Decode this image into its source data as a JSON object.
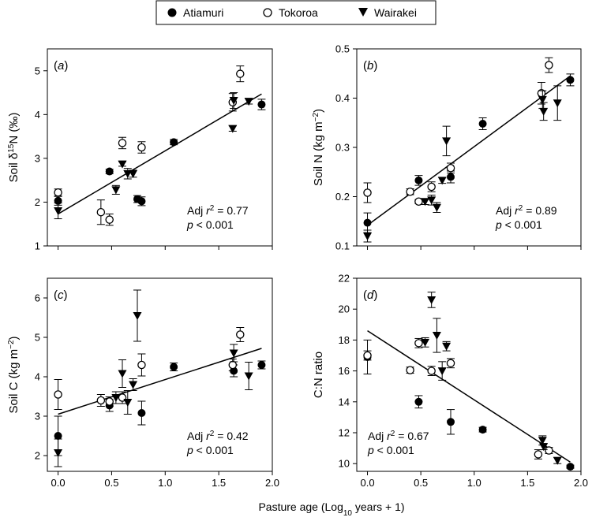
{
  "legend": {
    "entries": [
      {
        "label": "Atiamuri",
        "marker": "filled-circle"
      },
      {
        "label": "Tokoroa",
        "marker": "open-circle"
      },
      {
        "label": "Wairakei",
        "marker": "filled-triangle-down"
      }
    ]
  },
  "shared_xlabel": "Pasture age (Log10 years + 1)",
  "chart_data": [
    {
      "type": "scatter",
      "panel": "(a)",
      "ylabel": "Soil δ15N (‰)",
      "xlim": [
        -0.1,
        2.0
      ],
      "ylim": [
        1,
        5.5
      ],
      "xticks": [
        "0.0",
        "0.5",
        "1.0",
        "1.5",
        "2.0"
      ],
      "xtick_values": [
        0,
        0.5,
        1.0,
        1.5,
        2.0
      ],
      "yticks": [
        "1",
        "2",
        "3",
        "4",
        "5"
      ],
      "ytick_values": [
        1,
        2,
        3,
        4,
        5
      ],
      "show_xtick_labels": false,
      "annotation": {
        "r2_prefix": "Adj ",
        "r2_symbol": "r",
        "r2_power": "2",
        "r2_value": " = 0.77",
        "p_symbol": "p",
        "p_text": " < 0.001"
      },
      "fit": {
        "x": [
          0,
          1.9
        ],
        "y": [
          1.73,
          4.47
        ]
      },
      "series": [
        {
          "name": "Atiamuri",
          "points": [
            {
              "x": 0.0,
              "y": 2.03,
              "err": 0.1
            },
            {
              "x": 0.48,
              "y": 2.7,
              "err": 0.05
            },
            {
              "x": 0.74,
              "y": 2.07,
              "err": 0.08
            },
            {
              "x": 0.78,
              "y": 2.02,
              "err": 0.1
            },
            {
              "x": 1.08,
              "y": 3.37,
              "err": 0.06
            },
            {
              "x": 1.9,
              "y": 4.23,
              "err": 0.12
            }
          ]
        },
        {
          "name": "Tokoroa",
          "points": [
            {
              "x": 0.0,
              "y": 2.22,
              "err": 0.08
            },
            {
              "x": 0.4,
              "y": 1.77,
              "err": 0.28
            },
            {
              "x": 0.48,
              "y": 1.6,
              "err": 0.13
            },
            {
              "x": 0.6,
              "y": 3.35,
              "err": 0.13
            },
            {
              "x": 0.78,
              "y": 3.25,
              "err": 0.13
            },
            {
              "x": 1.63,
              "y": 4.28,
              "err": 0.2
            },
            {
              "x": 1.7,
              "y": 4.93,
              "err": 0.18
            }
          ]
        },
        {
          "name": "Wairakei",
          "points": [
            {
              "x": 0.0,
              "y": 1.8,
              "err": 0.18
            },
            {
              "x": 0.54,
              "y": 2.28,
              "err": 0.1
            },
            {
              "x": 0.6,
              "y": 2.87,
              "err": 0.05
            },
            {
              "x": 0.65,
              "y": 2.65,
              "err": 0.12
            },
            {
              "x": 0.7,
              "y": 2.65,
              "err": 0.08
            },
            {
              "x": 1.63,
              "y": 3.68,
              "err": 0.06
            },
            {
              "x": 1.64,
              "y": 4.32,
              "err": 0.18
            },
            {
              "x": 1.78,
              "y": 4.3,
              "err": 0.06
            }
          ]
        }
      ]
    },
    {
      "type": "scatter",
      "panel": "(b)",
      "ylabel": "Soil N (kg m−2)",
      "xlim": [
        -0.1,
        2.0
      ],
      "ylim": [
        0.1,
        0.5
      ],
      "xticks": [
        "0.0",
        "0.5",
        "1.0",
        "1.5",
        "2.0"
      ],
      "xtick_values": [
        0,
        0.5,
        1.0,
        1.5,
        2.0
      ],
      "yticks": [
        "0.1",
        "0.2",
        "0.3",
        "0.4",
        "0.5"
      ],
      "ytick_values": [
        0.1,
        0.2,
        0.3,
        0.4,
        0.5
      ],
      "show_xtick_labels": false,
      "annotation": {
        "r2_prefix": "Adj ",
        "r2_symbol": "r",
        "r2_power": "2",
        "r2_value": " = 0.89",
        "p_symbol": "p",
        "p_text": " < 0.001"
      },
      "fit": {
        "x": [
          0,
          1.9
        ],
        "y": [
          0.142,
          0.445
        ]
      },
      "series": [
        {
          "name": "Atiamuri",
          "points": [
            {
              "x": 0.0,
              "y": 0.147,
              "err": 0.02
            },
            {
              "x": 0.48,
              "y": 0.233,
              "err": 0.01
            },
            {
              "x": 0.78,
              "y": 0.24,
              "err": 0.012
            },
            {
              "x": 1.08,
              "y": 0.348,
              "err": 0.012
            },
            {
              "x": 1.9,
              "y": 0.437,
              "err": 0.012
            }
          ]
        },
        {
          "name": "Tokoroa",
          "points": [
            {
              "x": 0.0,
              "y": 0.208,
              "err": 0.02
            },
            {
              "x": 0.4,
              "y": 0.21,
              "err": 0.006
            },
            {
              "x": 0.48,
              "y": 0.19,
              "err": 0.004
            },
            {
              "x": 0.6,
              "y": 0.22,
              "err": 0.01
            },
            {
              "x": 0.78,
              "y": 0.258,
              "err": 0.01
            },
            {
              "x": 1.63,
              "y": 0.41,
              "err": 0.022
            },
            {
              "x": 1.7,
              "y": 0.467,
              "err": 0.015
            }
          ]
        },
        {
          "name": "Wairakei",
          "points": [
            {
              "x": 0.0,
              "y": 0.12,
              "err": 0.012
            },
            {
              "x": 0.54,
              "y": 0.19,
              "err": 0.006
            },
            {
              "x": 0.6,
              "y": 0.193,
              "err": 0.01
            },
            {
              "x": 0.65,
              "y": 0.178,
              "err": 0.01
            },
            {
              "x": 0.7,
              "y": 0.233,
              "err": 0.006
            },
            {
              "x": 0.74,
              "y": 0.313,
              "err": 0.03
            },
            {
              "x": 1.64,
              "y": 0.397,
              "err": 0.018
            },
            {
              "x": 1.65,
              "y": 0.373,
              "err": 0.018
            },
            {
              "x": 1.78,
              "y": 0.39,
              "err": 0.035
            }
          ]
        }
      ]
    },
    {
      "type": "scatter",
      "panel": "(c)",
      "ylabel": "Soil C (kg m−2)",
      "xlim": [
        -0.1,
        2.0
      ],
      "ylim": [
        1.6,
        6.5
      ],
      "xticks": [
        "0.0",
        "0.5",
        "1.0",
        "1.5",
        "2.0"
      ],
      "xtick_values": [
        0,
        0.5,
        1.0,
        1.5,
        2.0
      ],
      "yticks": [
        "2",
        "3",
        "4",
        "5",
        "6"
      ],
      "ytick_values": [
        2,
        3,
        4,
        5,
        6
      ],
      "show_xtick_labels": true,
      "annotation": {
        "r2_prefix": "Adj ",
        "r2_symbol": "r",
        "r2_power": "2",
        "r2_value": " = 0.42",
        "p_symbol": "p",
        "p_text": " < 0.001"
      },
      "fit": {
        "x": [
          0,
          1.9
        ],
        "y": [
          3.05,
          4.72
        ]
      },
      "series": [
        {
          "name": "Atiamuri",
          "points": [
            {
              "x": 0.0,
              "y": 2.5,
              "err": 0.5
            },
            {
              "x": 0.48,
              "y": 3.27,
              "err": 0.15
            },
            {
              "x": 0.78,
              "y": 3.08,
              "err": 0.3
            },
            {
              "x": 1.08,
              "y": 4.25,
              "err": 0.1
            },
            {
              "x": 1.64,
              "y": 4.15,
              "err": 0.15
            },
            {
              "x": 1.9,
              "y": 4.3,
              "err": 0.1
            }
          ]
        },
        {
          "name": "Tokoroa",
          "points": [
            {
              "x": 0.0,
              "y": 3.55,
              "err": 0.38
            },
            {
              "x": 0.4,
              "y": 3.4,
              "err": 0.15
            },
            {
              "x": 0.48,
              "y": 3.37,
              "err": 0.12
            },
            {
              "x": 0.6,
              "y": 3.47,
              "err": 0.15
            },
            {
              "x": 0.78,
              "y": 4.3,
              "err": 0.28
            },
            {
              "x": 1.63,
              "y": 4.3,
              "err": 0.15
            },
            {
              "x": 1.7,
              "y": 5.07,
              "err": 0.18
            }
          ]
        },
        {
          "name": "Wairakei",
          "points": [
            {
              "x": 0.0,
              "y": 2.07,
              "err": 0.35
            },
            {
              "x": 0.54,
              "y": 3.47,
              "err": 0.15
            },
            {
              "x": 0.6,
              "y": 4.08,
              "err": 0.35
            },
            {
              "x": 0.65,
              "y": 3.35,
              "err": 0.3
            },
            {
              "x": 0.7,
              "y": 3.8,
              "err": 0.15
            },
            {
              "x": 0.74,
              "y": 5.55,
              "err": 0.65
            },
            {
              "x": 1.64,
              "y": 4.6,
              "err": 0.22
            },
            {
              "x": 1.78,
              "y": 4.02,
              "err": 0.35
            }
          ]
        }
      ]
    },
    {
      "type": "scatter",
      "panel": "(d)",
      "ylabel": "C:N ratio",
      "xlim": [
        -0.1,
        2.0
      ],
      "ylim": [
        9.5,
        22
      ],
      "xticks": [
        "0.0",
        "0.5",
        "1.0",
        "1.5",
        "2.0"
      ],
      "xtick_values": [
        0,
        0.5,
        1.0,
        1.5,
        2.0
      ],
      "yticks": [
        "10",
        "12",
        "14",
        "16",
        "18",
        "20",
        "22"
      ],
      "ytick_values": [
        10,
        12,
        14,
        16,
        18,
        20,
        22
      ],
      "show_xtick_labels": true,
      "annotation": {
        "r2_prefix": "Adj ",
        "r2_symbol": "r",
        "r2_power": "2",
        "r2_value": " = 0.67",
        "p_symbol": "p",
        "p_text": " < 0.001"
      },
      "fit": {
        "x": [
          0,
          1.9
        ],
        "y": [
          18.6,
          10.1
        ]
      },
      "series": [
        {
          "name": "Atiamuri",
          "points": [
            {
              "x": 0.0,
              "y": 16.9,
              "err": 1.1
            },
            {
              "x": 0.48,
              "y": 14.0,
              "err": 0.4
            },
            {
              "x": 0.78,
              "y": 12.7,
              "err": 0.8
            },
            {
              "x": 1.08,
              "y": 12.2,
              "err": 0.15
            },
            {
              "x": 1.9,
              "y": 9.8,
              "err": 0.1
            }
          ]
        },
        {
          "name": "Tokoroa",
          "points": [
            {
              "x": 0.0,
              "y": 17.0,
              "err": 0.3
            },
            {
              "x": 0.4,
              "y": 16.05,
              "err": 0.2
            },
            {
              "x": 0.48,
              "y": 17.8,
              "err": 0.3
            },
            {
              "x": 0.6,
              "y": 16.0,
              "err": 0.3
            },
            {
              "x": 0.78,
              "y": 16.5,
              "err": 0.3
            },
            {
              "x": 1.6,
              "y": 10.6,
              "err": 0.3
            },
            {
              "x": 1.7,
              "y": 10.85,
              "err": 0.2
            }
          ]
        },
        {
          "name": "Wairakei",
          "points": [
            {
              "x": 0.54,
              "y": 17.85,
              "err": 0.3
            },
            {
              "x": 0.6,
              "y": 20.6,
              "err": 0.5
            },
            {
              "x": 0.65,
              "y": 18.3,
              "err": 1.1
            },
            {
              "x": 0.7,
              "y": 16.0,
              "err": 0.6
            },
            {
              "x": 0.74,
              "y": 17.6,
              "err": 0.3
            },
            {
              "x": 1.64,
              "y": 11.5,
              "err": 0.3
            },
            {
              "x": 1.65,
              "y": 11.1,
              "err": 0.2
            },
            {
              "x": 1.78,
              "y": 10.2,
              "err": 0.2
            }
          ]
        }
      ]
    }
  ]
}
